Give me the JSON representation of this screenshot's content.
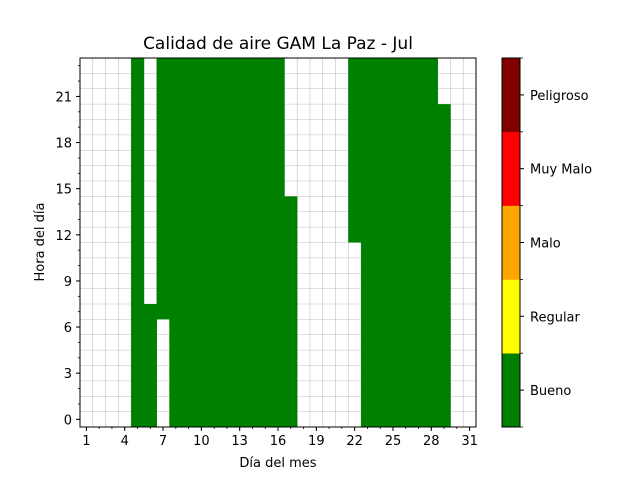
{
  "chart_data": {
    "type": "heatmap",
    "title": "Calidad de aire GAM La Paz - Jul",
    "xlabel": "Día del mes",
    "ylabel": "Hora del día",
    "x_range": [
      1,
      31
    ],
    "y_range": [
      0,
      23
    ],
    "x_ticks": [
      1,
      4,
      7,
      10,
      13,
      16,
      19,
      22,
      25,
      28,
      31
    ],
    "y_ticks": [
      0,
      3,
      6,
      9,
      12,
      15,
      18,
      21
    ],
    "grid": true,
    "cell_value": "Bueno",
    "bueno_hours_by_day": [
      {
        "day": 5,
        "from_hour": 0,
        "to_hour": 23
      },
      {
        "day": 6,
        "from_hour": 0,
        "to_hour": 7
      },
      {
        "day": 7,
        "from_hour": 7,
        "to_hour": 23
      },
      {
        "day": 8,
        "from_hour": 0,
        "to_hour": 23
      },
      {
        "day": 9,
        "from_hour": 0,
        "to_hour": 23
      },
      {
        "day": 10,
        "from_hour": 0,
        "to_hour": 23
      },
      {
        "day": 11,
        "from_hour": 0,
        "to_hour": 23
      },
      {
        "day": 12,
        "from_hour": 0,
        "to_hour": 23
      },
      {
        "day": 13,
        "from_hour": 0,
        "to_hour": 23
      },
      {
        "day": 14,
        "from_hour": 0,
        "to_hour": 23
      },
      {
        "day": 15,
        "from_hour": 0,
        "to_hour": 23
      },
      {
        "day": 16,
        "from_hour": 0,
        "to_hour": 23
      },
      {
        "day": 17,
        "from_hour": 0,
        "to_hour": 14
      },
      {
        "day": 22,
        "from_hour": 12,
        "to_hour": 23
      },
      {
        "day": 23,
        "from_hour": 0,
        "to_hour": 23
      },
      {
        "day": 24,
        "from_hour": 0,
        "to_hour": 23
      },
      {
        "day": 25,
        "from_hour": 0,
        "to_hour": 23
      },
      {
        "day": 26,
        "from_hour": 0,
        "to_hour": 23
      },
      {
        "day": 27,
        "from_hour": 0,
        "to_hour": 23
      },
      {
        "day": 28,
        "from_hour": 0,
        "to_hour": 23
      },
      {
        "day": 29,
        "from_hour": 0,
        "to_hour": 20
      }
    ],
    "colorbar": {
      "categories": [
        "Bueno",
        "Regular",
        "Malo",
        "Muy Malo",
        "Peligroso"
      ],
      "colors": [
        "#008000",
        "#ffff00",
        "#ffa500",
        "#ff0000",
        "#800000"
      ]
    }
  }
}
